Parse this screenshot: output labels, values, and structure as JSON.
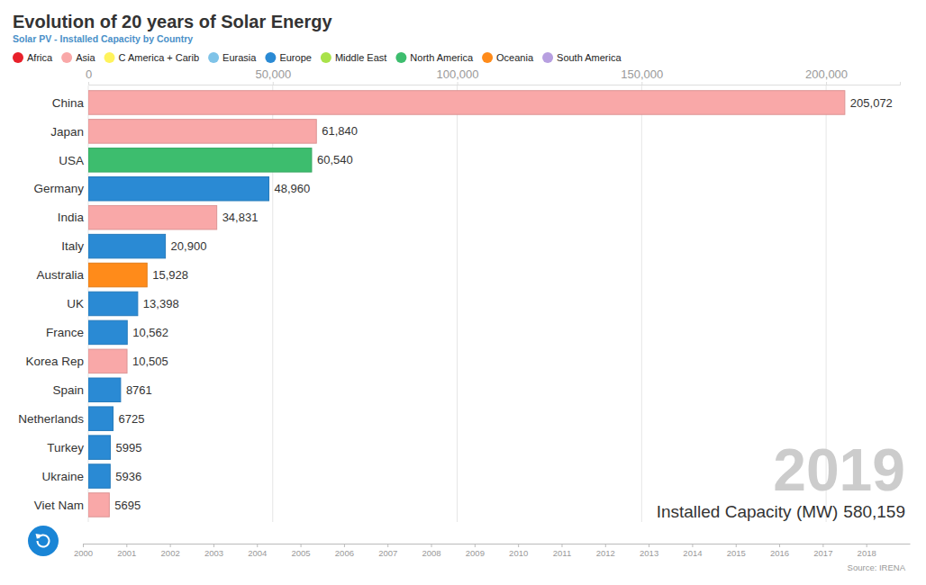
{
  "chart_data": {
    "type": "bar",
    "orientation": "horizontal",
    "title": "Evolution of 20 years of Solar Energy",
    "subtitle": "Solar PV - Installed Capacity by Country",
    "legend": "top-left",
    "grid": true,
    "data_labels": true,
    "categories": [
      "China",
      "Japan",
      "USA",
      "Germany",
      "India",
      "Italy",
      "Australia",
      "UK",
      "France",
      "Korea Rep",
      "Spain",
      "Netherlands",
      "Turkey",
      "Ukraine",
      "Viet Nam"
    ],
    "xlim": [
      0,
      220000
    ],
    "xticks": [
      0,
      {
        "value": 50000,
        "label": "50,000"
      },
      {
        "value": 100000,
        "label": "100,000"
      },
      {
        "value": 150000,
        "label": "150,000"
      },
      {
        "value": 200000,
        "label": "200,000"
      }
    ],
    "series": [
      {
        "name": "Africa",
        "color": "#e8202a",
        "values": [
          null,
          null,
          null,
          null,
          null,
          null,
          null,
          null,
          null,
          null,
          null,
          null,
          null,
          null,
          null
        ],
        "value_labels": [
          null,
          null,
          null,
          null,
          null,
          null,
          null,
          null,
          null,
          null,
          null,
          null,
          null,
          null,
          null
        ]
      },
      {
        "name": "Asia",
        "color": "#f9a8a8",
        "values": [
          205072,
          61840,
          null,
          null,
          34831,
          null,
          null,
          null,
          null,
          10505,
          null,
          null,
          null,
          null,
          5695
        ],
        "value_labels": [
          "205,072",
          "61,840",
          null,
          null,
          "34,831",
          null,
          null,
          null,
          null,
          "10,505",
          null,
          null,
          null,
          null,
          "5695"
        ]
      },
      {
        "name": "C America + Carib",
        "color": "#fff35c",
        "values": [
          null,
          null,
          null,
          null,
          null,
          null,
          null,
          null,
          null,
          null,
          null,
          null,
          null,
          null,
          null
        ],
        "value_labels": [
          null,
          null,
          null,
          null,
          null,
          null,
          null,
          null,
          null,
          null,
          null,
          null,
          null,
          null,
          null
        ]
      },
      {
        "name": "Eurasia",
        "color": "#7fc3e8",
        "values": [
          null,
          null,
          null,
          null,
          null,
          null,
          null,
          null,
          null,
          null,
          null,
          null,
          null,
          null,
          null
        ],
        "value_labels": [
          null,
          null,
          null,
          null,
          null,
          null,
          null,
          null,
          null,
          null,
          null,
          null,
          null,
          null,
          null
        ]
      },
      {
        "name": "Europe",
        "color": "#2a8ad4",
        "values": [
          null,
          null,
          null,
          48960,
          null,
          20900,
          null,
          13398,
          10562,
          null,
          8761,
          6725,
          5995,
          5936,
          null
        ],
        "value_labels": [
          null,
          null,
          null,
          "48,960",
          null,
          "20,900",
          null,
          "13,398",
          "10,562",
          null,
          "8761",
          "6725",
          "5995",
          "5936",
          null
        ]
      },
      {
        "name": "Middle East",
        "color": "#a9e24a",
        "values": [
          null,
          null,
          null,
          null,
          null,
          null,
          null,
          null,
          null,
          null,
          null,
          null,
          null,
          null,
          null
        ],
        "value_labels": [
          null,
          null,
          null,
          null,
          null,
          null,
          null,
          null,
          null,
          null,
          null,
          null,
          null,
          null,
          null
        ]
      },
      {
        "name": "North America",
        "color": "#3dbd6e",
        "values": [
          null,
          null,
          60540,
          null,
          null,
          null,
          null,
          null,
          null,
          null,
          null,
          null,
          null,
          null,
          null
        ],
        "value_labels": [
          null,
          null,
          "60,540",
          null,
          null,
          null,
          null,
          null,
          null,
          null,
          null,
          null,
          null,
          null,
          null
        ]
      },
      {
        "name": "Oceania",
        "color": "#ff8b1a",
        "values": [
          null,
          null,
          null,
          null,
          null,
          null,
          15928,
          null,
          null,
          null,
          null,
          null,
          null,
          null,
          null
        ],
        "value_labels": [
          null,
          null,
          null,
          null,
          null,
          null,
          "15,928",
          null,
          null,
          null,
          null,
          null,
          null,
          null,
          null
        ]
      },
      {
        "name": "South America",
        "color": "#b79fe0",
        "values": [
          null,
          null,
          null,
          null,
          null,
          null,
          null,
          null,
          null,
          null,
          null,
          null,
          null,
          null,
          null
        ],
        "value_labels": [
          null,
          null,
          null,
          null,
          null,
          null,
          null,
          null,
          null,
          null,
          null,
          null,
          null,
          null,
          null
        ]
      }
    ],
    "year": 2019,
    "total_label": "Installed Capacity (MW)",
    "total": {
      "value": 580159,
      "label": "580,159"
    },
    "timeline_xlim": [
      2000,
      2019
    ],
    "timeline_ticks": [
      2000,
      2001,
      2002,
      2003,
      2004,
      2005,
      2006,
      2007,
      2008,
      2009,
      2010,
      2011,
      2012,
      2013,
      2014,
      2015,
      2016,
      2017,
      2018
    ],
    "source": "Source: IRENA"
  }
}
